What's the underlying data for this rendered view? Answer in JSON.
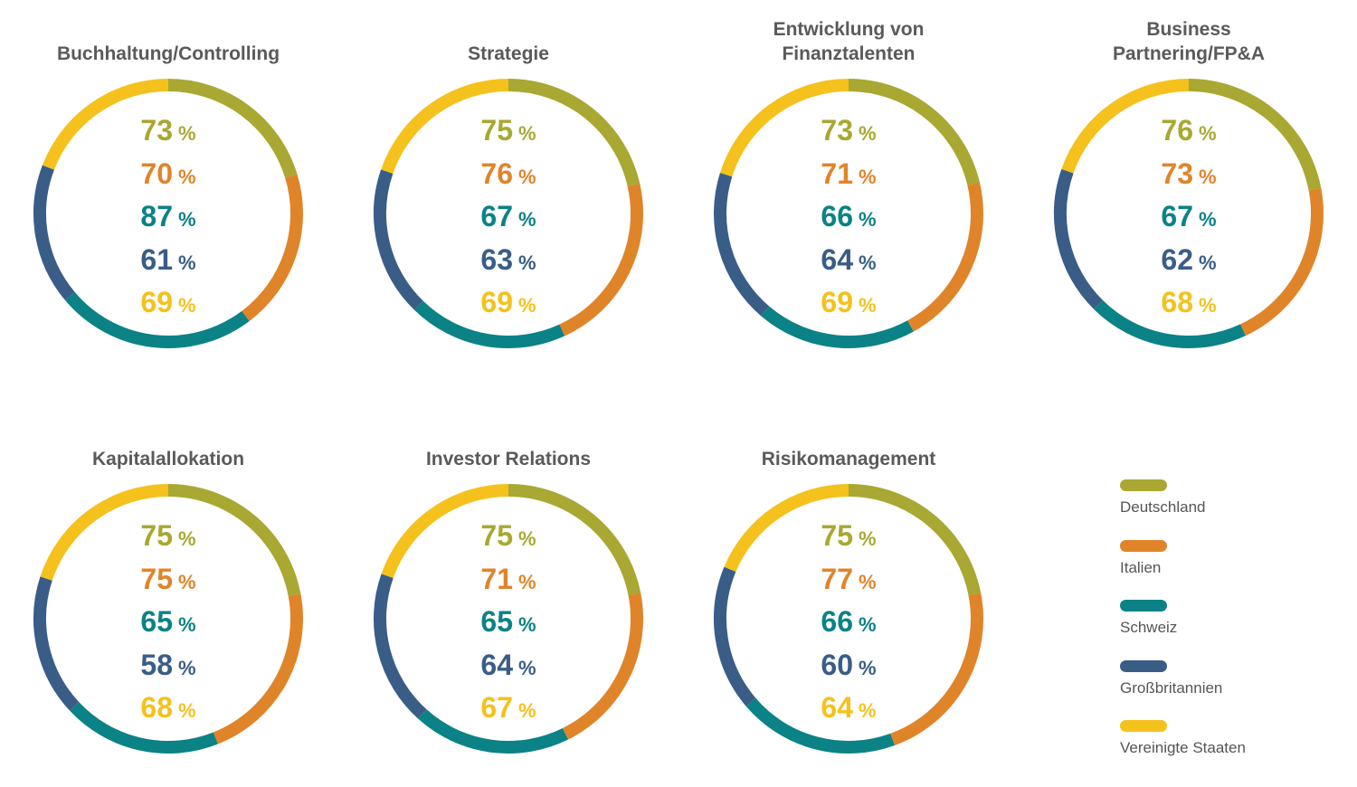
{
  "colors": {
    "title": "#5a5a5a",
    "Deutschland": "#a8a832",
    "Italien": "#e0842a",
    "Schweiz": "#0a8286",
    "Großbritannien": "#395d86",
    "Vereinigte Staaten": "#f5c11c"
  },
  "legend": {
    "items": [
      {
        "label": "Deutschland",
        "color": "#a8a832"
      },
      {
        "label": "Italien",
        "color": "#e0842a"
      },
      {
        "label": "Schweiz",
        "color": "#0a8286"
      },
      {
        "label": "Großbritannien",
        "color": "#395d86"
      },
      {
        "label": "Vereinigte Staaten",
        "color": "#f5c11c"
      }
    ]
  },
  "chart_data": [
    {
      "type": "pie",
      "title": [
        "Buchhaltung/Controlling"
      ],
      "categories": [
        "Deutschland",
        "Italien",
        "Schweiz",
        "Großbritannien",
        "Vereinigte Staaten"
      ],
      "values": [
        73,
        70,
        87,
        61,
        69
      ],
      "unit": "%"
    },
    {
      "type": "pie",
      "title": [
        "Strategie"
      ],
      "categories": [
        "Deutschland",
        "Italien",
        "Schweiz",
        "Großbritannien",
        "Vereinigte Staaten"
      ],
      "values": [
        75,
        76,
        67,
        63,
        69
      ],
      "unit": "%"
    },
    {
      "type": "pie",
      "title": [
        "Entwicklung von",
        "Finanztalenten"
      ],
      "categories": [
        "Deutschland",
        "Italien",
        "Schweiz",
        "Großbritannien",
        "Vereinigte Staaten"
      ],
      "values": [
        73,
        71,
        66,
        64,
        69
      ],
      "unit": "%"
    },
    {
      "type": "pie",
      "title": [
        "Business",
        "Partnering/FP&A"
      ],
      "categories": [
        "Deutschland",
        "Italien",
        "Schweiz",
        "Großbritannien",
        "Vereinigte Staaten"
      ],
      "values": [
        76,
        73,
        67,
        62,
        68
      ],
      "unit": "%"
    },
    {
      "type": "pie",
      "title": [
        "Kapitalallokation"
      ],
      "categories": [
        "Deutschland",
        "Italien",
        "Schweiz",
        "Großbritannien",
        "Vereinigte Staaten"
      ],
      "values": [
        75,
        75,
        65,
        58,
        68
      ],
      "unit": "%"
    },
    {
      "type": "pie",
      "title": [
        "Investor Relations"
      ],
      "categories": [
        "Deutschland",
        "Italien",
        "Schweiz",
        "Großbritannien",
        "Vereinigte Staaten"
      ],
      "values": [
        75,
        71,
        65,
        64,
        67
      ],
      "unit": "%"
    },
    {
      "type": "pie",
      "title": [
        "Risikomanagement"
      ],
      "categories": [
        "Deutschland",
        "Italien",
        "Schweiz",
        "Großbritannien",
        "Vereinigte Staaten"
      ],
      "values": [
        75,
        77,
        66,
        60,
        64
      ],
      "unit": "%"
    }
  ]
}
